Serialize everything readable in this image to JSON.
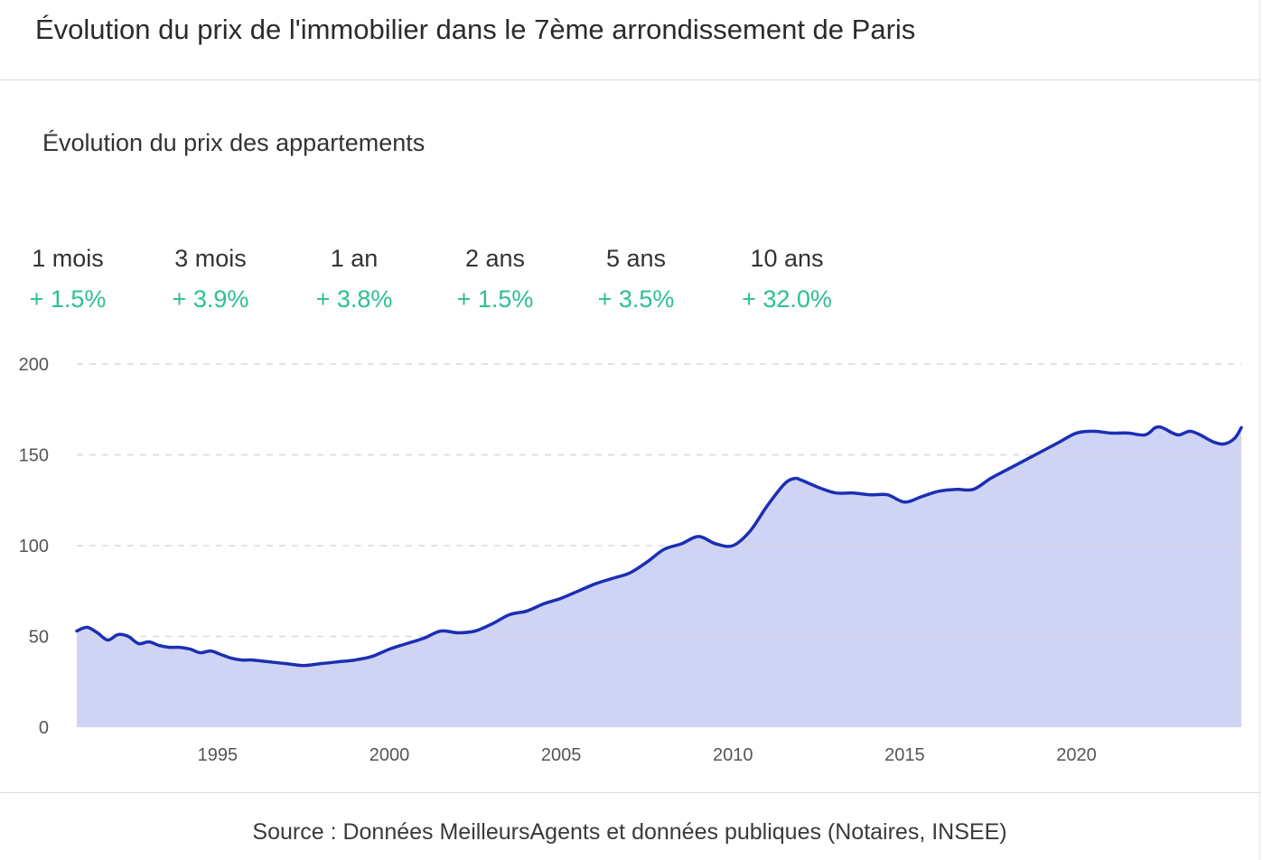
{
  "header": {
    "title": "Évolution du prix de l'immobilier dans le 7ème arrondissement de Paris"
  },
  "subtitle": "Évolution du prix des appartements",
  "stats": [
    {
      "label": "1 mois",
      "value": "+ 1.5%"
    },
    {
      "label": "3 mois",
      "value": "+ 3.9%"
    },
    {
      "label": "1 an",
      "value": "+ 3.8%"
    },
    {
      "label": "2 ans",
      "value": "+ 1.5%"
    },
    {
      "label": "5 ans",
      "value": "+ 3.5%"
    },
    {
      "label": "10 ans",
      "value": "+ 32.0%"
    }
  ],
  "colors": {
    "line": "#1a2fb3",
    "area": "#d0d4f4",
    "positive": "#2cbf94",
    "grid": "#d8d8d8"
  },
  "chart_data": {
    "type": "area",
    "title": "",
    "xlabel": "",
    "ylabel": "",
    "ylim": [
      0,
      200
    ],
    "xlim": [
      1990.9,
      2024.8
    ],
    "y_ticks": [
      0,
      50,
      100,
      150,
      200
    ],
    "x_ticks": [
      1995,
      2000,
      2005,
      2010,
      2015,
      2020
    ],
    "grid": true,
    "series": [
      {
        "x": [
          1990.9,
          1991.2,
          1991.5,
          1991.8,
          1992.1,
          1992.4,
          1992.7,
          1993.0,
          1993.3,
          1993.6,
          1993.9,
          1994.2,
          1994.5,
          1994.8,
          1995.1,
          1995.4,
          1995.7,
          1996.0,
          1996.5,
          1997.0,
          1997.5,
          1998.0,
          1998.5,
          1999.0,
          1999.5,
          2000.0,
          2000.5,
          2001.0,
          2001.5,
          2002.0,
          2002.5,
          2003.0,
          2003.5,
          2004.0,
          2004.5,
          2005.0,
          2005.5,
          2006.0,
          2006.5,
          2007.0,
          2007.5,
          2008.0,
          2008.5,
          2009.0,
          2009.5,
          2010.0,
          2010.5,
          2011.0,
          2011.5,
          2011.8,
          2012.0,
          2012.5,
          2013.0,
          2013.5,
          2014.0,
          2014.5,
          2015.0,
          2015.5,
          2016.0,
          2016.5,
          2017.0,
          2017.5,
          2018.0,
          2018.5,
          2019.0,
          2019.5,
          2020.0,
          2020.5,
          2021.0,
          2021.5,
          2022.0,
          2022.3,
          2022.5,
          2022.8,
          2023.0,
          2023.3,
          2023.6,
          2024.0,
          2024.3,
          2024.6,
          2024.8
        ],
        "values": [
          53,
          55,
          52,
          48,
          51,
          50,
          46,
          47,
          45,
          44,
          44,
          43,
          41,
          42,
          40,
          38,
          37,
          37,
          36,
          35,
          34,
          35,
          36,
          37,
          39,
          43,
          46,
          49,
          53,
          52,
          53,
          57,
          62,
          64,
          68,
          71,
          75,
          79,
          82,
          85,
          91,
          98,
          101,
          105,
          101,
          100,
          108,
          122,
          134,
          137,
          136,
          132,
          129,
          129,
          128,
          128,
          124,
          127,
          130,
          131,
          131,
          137,
          142,
          147,
          152,
          157,
          162,
          163,
          162,
          162,
          161,
          165,
          165,
          162,
          161,
          163,
          161,
          157,
          156,
          159,
          165
        ]
      }
    ]
  },
  "source": "Source : Données MeilleursAgents et données publiques (Notaires, INSEE)"
}
